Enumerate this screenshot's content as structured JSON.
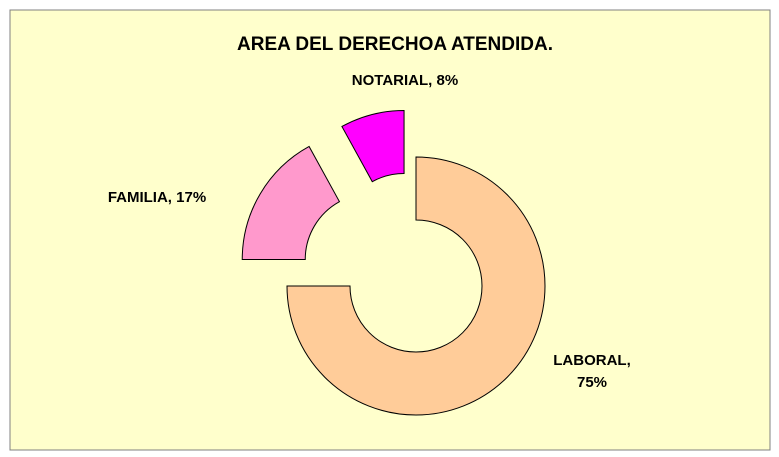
{
  "chart_data": {
    "type": "pie",
    "title": "AREA DEL DERECHOA ATENDIDA.",
    "values": [
      75,
      17,
      8
    ],
    "value_labels": [
      "LABORAL, 75%",
      "FAMILIA, 17%",
      "NOTARIAL, 8%"
    ],
    "colors": [
      "#FFCC99",
      "#FF99CC",
      "#FF00FF"
    ]
  }
}
